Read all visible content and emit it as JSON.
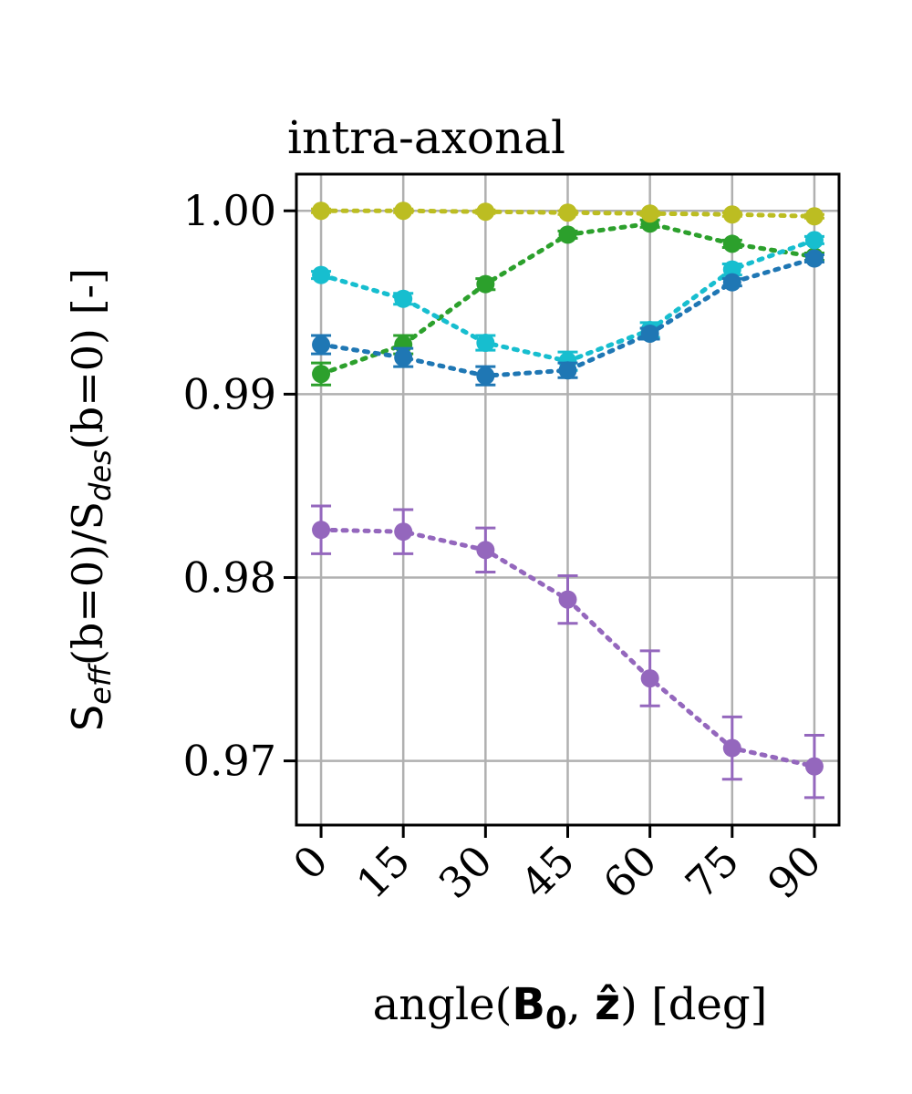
{
  "chart_data": {
    "type": "line",
    "title": "intra-axonal",
    "ylabel": {
      "s1": "S",
      "sub1": "eff",
      "mid": "(b=0)/S",
      "sub2": "des",
      "end": "(b=0) [-]"
    },
    "xlabel": {
      "pre": "angle(",
      "b_letter": "B",
      "b_sub": "0",
      "comma": ", ",
      "z": "ẑ",
      "post": ") [deg]"
    },
    "x": [
      0,
      15,
      30,
      45,
      60,
      75,
      90
    ],
    "x_tick_labels": [
      "0",
      "15",
      "30",
      "45",
      "60",
      "75",
      "90"
    ],
    "y_ticks": [
      0.97,
      0.98,
      0.99,
      1.0
    ],
    "y_tick_labels": [
      "0.97",
      "0.98",
      "0.99",
      "1.00"
    ],
    "xlim": [
      -4.5,
      94.5
    ],
    "ylim": [
      0.9665,
      1.002
    ],
    "grid": true,
    "line_style": "dotted with circle markers and error bars",
    "series": [
      {
        "color": "#9467bd",
        "values": [
          0.9826,
          0.9825,
          0.9815,
          0.9788,
          0.9745,
          0.9707,
          0.9697
        ],
        "errors": [
          0.0013,
          0.0012,
          0.0012,
          0.0013,
          0.0015,
          0.0017,
          0.0017
        ]
      },
      {
        "color": "#2ca02c",
        "values": [
          0.9911,
          0.9927,
          0.996,
          0.9987,
          0.9993,
          0.9982,
          0.9975
        ],
        "errors": [
          0.0006,
          0.0005,
          0.0003,
          0.0002,
          0.0002,
          0.0002,
          0.0002
        ]
      },
      {
        "color": "#17becf",
        "values": [
          0.9965,
          0.9952,
          0.9928,
          0.9918,
          0.9935,
          0.9968,
          0.9984
        ],
        "errors": [
          0.0002,
          0.0003,
          0.0004,
          0.0005,
          0.0004,
          0.0003,
          0.0002
        ]
      },
      {
        "color": "#1f77b4",
        "values": [
          0.9927,
          0.992,
          0.991,
          0.9913,
          0.9933,
          0.9961,
          0.9974
        ],
        "errors": [
          0.0005,
          0.0005,
          0.0005,
          0.0004,
          0.0003,
          0.0002,
          0.0002
        ]
      },
      {
        "color": "#bcbd22",
        "values": [
          1.0,
          1.0,
          0.99995,
          0.9999,
          0.99985,
          0.9998,
          0.9997
        ],
        "errors": [
          0.0001,
          0.0001,
          0.0001,
          0.0001,
          0.0001,
          0.0001,
          0.0001
        ]
      }
    ]
  }
}
